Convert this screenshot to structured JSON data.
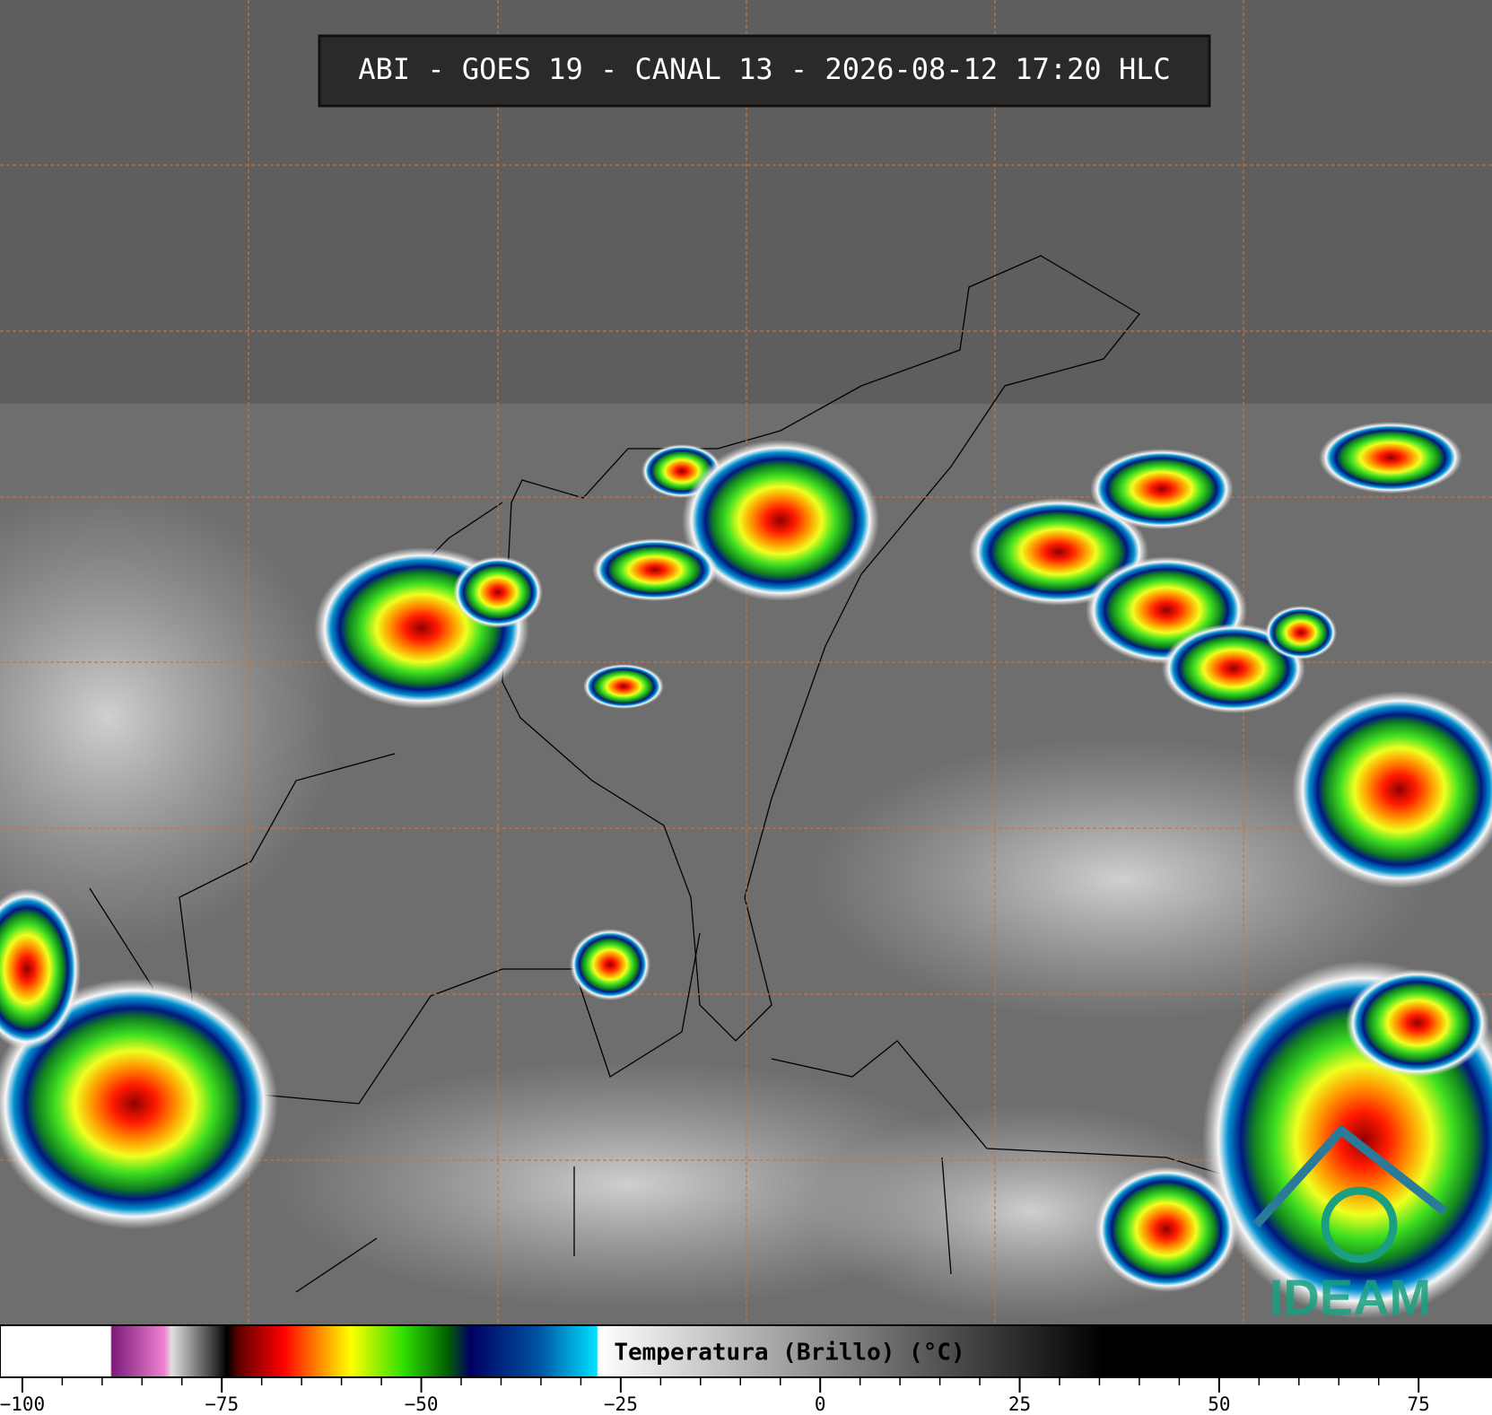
{
  "header": {
    "title": "ABI - GOES 19 - CANAL 13 - 2026-08-12 17:20 HLC"
  },
  "colorbar": {
    "label": "Temperatura (Brillo) (°C)",
    "range": [
      -102.8,
      84.2
    ],
    "ticks": [
      {
        "value": -100,
        "label": "−100"
      },
      {
        "value": -75,
        "label": "−75"
      },
      {
        "value": -50,
        "label": "−50"
      },
      {
        "value": -25,
        "label": "−25"
      },
      0,
      25,
      50,
      75
    ]
  },
  "logo": {
    "text": "IDEAM"
  }
}
